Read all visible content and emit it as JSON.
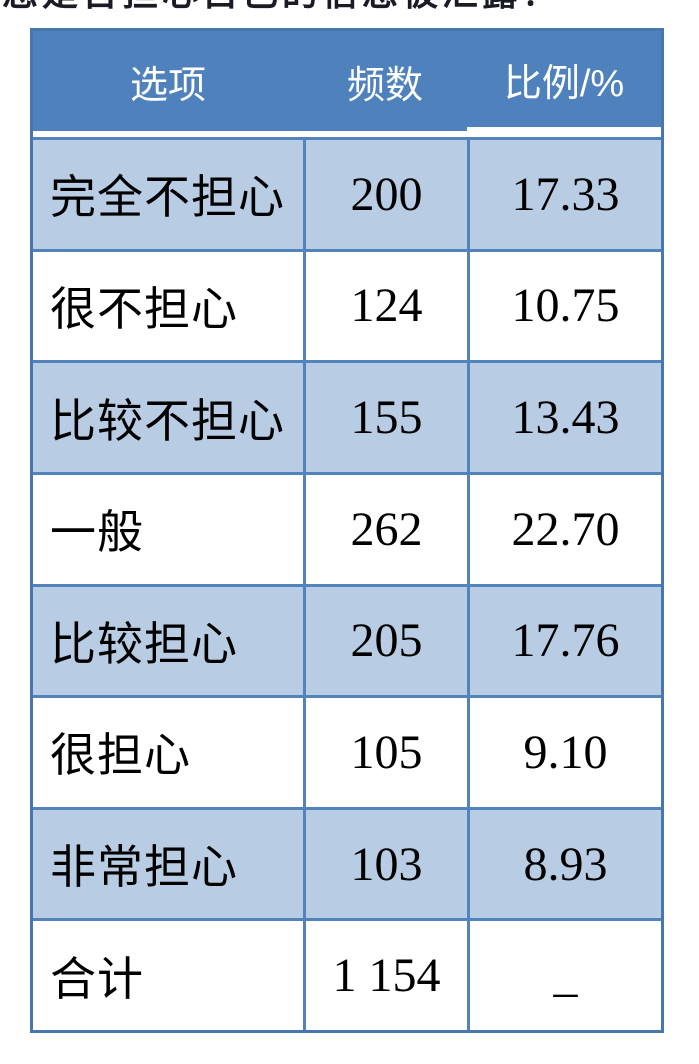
{
  "caption": {
    "clipped_text": "您是否担心自己的信息被泄露？"
  },
  "table": {
    "columns": [
      {
        "key": "option",
        "label": "选项"
      },
      {
        "key": "frequency",
        "label": "频数"
      },
      {
        "key": "percentage",
        "label": "比例/%"
      }
    ],
    "rows": [
      {
        "option": "完全不担心",
        "frequency": "200",
        "percentage": "17.33",
        "shaded": true
      },
      {
        "option": "很不担心",
        "frequency": "124",
        "percentage": "10.75",
        "shaded": false
      },
      {
        "option": "比较不担心",
        "frequency": "155",
        "percentage": "13.43",
        "shaded": true
      },
      {
        "option": "一般",
        "frequency": "262",
        "percentage": "22.70",
        "shaded": false
      },
      {
        "option": "比较担心",
        "frequency": "205",
        "percentage": "17.76",
        "shaded": true
      },
      {
        "option": "很担心",
        "frequency": "105",
        "percentage": "9.10",
        "shaded": false
      },
      {
        "option": "非常担心",
        "frequency": "103",
        "percentage": "8.93",
        "shaded": true
      },
      {
        "option": "合计",
        "frequency": "1 154",
        "percentage": "_",
        "shaded": false
      }
    ],
    "colors": {
      "header_bg": "#4f81bd",
      "header_text": "#ffffff",
      "shaded_row_bg": "#b8cce4",
      "plain_row_bg": "#ffffff",
      "border": "#5283ba",
      "outer_border": "#4677ae",
      "body_text": "#000000"
    }
  },
  "chart_data": {
    "type": "table",
    "title": "",
    "categories": [
      "完全不担心",
      "很不担心",
      "比较不担心",
      "一般",
      "比较担心",
      "很担心",
      "非常担心",
      "合计"
    ],
    "series": [
      {
        "name": "频数",
        "values": [
          200,
          124,
          155,
          262,
          205,
          105,
          103,
          1154
        ]
      },
      {
        "name": "比例/%",
        "values": [
          17.33,
          10.75,
          13.43,
          22.7,
          17.76,
          9.1,
          8.93,
          null
        ]
      }
    ]
  }
}
